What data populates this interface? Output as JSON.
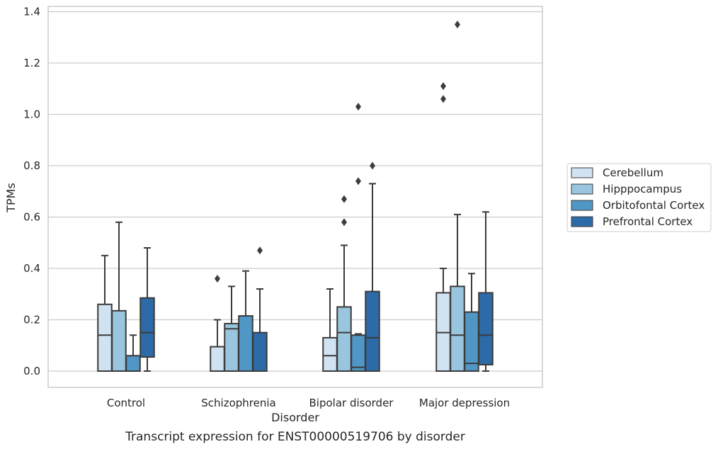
{
  "chart_data": {
    "type": "box",
    "caption": "Transcript expression for ENST00000519706 by disorder",
    "xlabel": "Disorder",
    "ylabel": "TPMs",
    "ylim": [
      -0.065,
      1.42
    ],
    "yticks": [
      "0.0",
      "0.2",
      "0.4",
      "0.6",
      "0.8",
      "1.0",
      "1.2",
      "1.4"
    ],
    "grid": "horizontal",
    "legend_position": "right",
    "categories": [
      "Control",
      "Schizophrenia",
      "Bipolar disorder",
      "Major depression"
    ],
    "series": [
      {
        "name": "Cerebellum",
        "color": "#d1e2f2",
        "boxes": [
          {
            "whislo": 0.0,
            "q1": 0.0,
            "med": 0.14,
            "q3": 0.26,
            "whishi": 0.45,
            "fliers": []
          },
          {
            "whislo": 0.0,
            "q1": 0.0,
            "med": 0.0,
            "q3": 0.095,
            "whishi": 0.2,
            "fliers": [
              0.36
            ]
          },
          {
            "whislo": 0.0,
            "q1": 0.0,
            "med": 0.06,
            "q3": 0.13,
            "whishi": 0.32,
            "fliers": []
          },
          {
            "whislo": 0.0,
            "q1": 0.0,
            "med": 0.15,
            "q3": 0.305,
            "whishi": 0.4,
            "fliers": [
              1.06,
              1.11
            ]
          }
        ]
      },
      {
        "name": "Hipppocampus",
        "color": "#9ac5de",
        "boxes": [
          {
            "whislo": 0.0,
            "q1": 0.0,
            "med": 0.0,
            "q3": 0.235,
            "whishi": 0.58,
            "fliers": []
          },
          {
            "whislo": 0.0,
            "q1": 0.0,
            "med": 0.165,
            "q3": 0.185,
            "whishi": 0.33,
            "fliers": []
          },
          {
            "whislo": 0.0,
            "q1": 0.0,
            "med": 0.15,
            "q3": 0.25,
            "whishi": 0.49,
            "fliers": [
              0.58,
              0.67
            ]
          },
          {
            "whislo": 0.0,
            "q1": 0.0,
            "med": 0.14,
            "q3": 0.33,
            "whishi": 0.61,
            "fliers": [
              1.35
            ]
          }
        ]
      },
      {
        "name": "Orbitofontal Cortex",
        "color": "#5097c6",
        "boxes": [
          {
            "whislo": 0.0,
            "q1": 0.0,
            "med": 0.0,
            "q3": 0.06,
            "whishi": 0.14,
            "fliers": []
          },
          {
            "whislo": 0.0,
            "q1": 0.0,
            "med": 0.0,
            "q3": 0.215,
            "whishi": 0.39,
            "fliers": []
          },
          {
            "whislo": 0.0,
            "q1": 0.0,
            "med": 0.015,
            "q3": 0.14,
            "whishi": 0.145,
            "fliers": [
              0.74,
              1.03
            ]
          },
          {
            "whislo": 0.0,
            "q1": 0.0,
            "med": 0.03,
            "q3": 0.23,
            "whishi": 0.38,
            "fliers": []
          }
        ]
      },
      {
        "name": "Prefrontal Cortex",
        "color": "#2d6aa8",
        "boxes": [
          {
            "whislo": 0.0,
            "q1": 0.055,
            "med": 0.15,
            "q3": 0.285,
            "whishi": 0.48,
            "fliers": []
          },
          {
            "whislo": 0.0,
            "q1": 0.0,
            "med": 0.0,
            "q3": 0.15,
            "whishi": 0.32,
            "fliers": [
              0.47
            ]
          },
          {
            "whislo": 0.0,
            "q1": 0.0,
            "med": 0.13,
            "q3": 0.31,
            "whishi": 0.73,
            "fliers": [
              0.8
            ]
          },
          {
            "whislo": 0.0,
            "q1": 0.025,
            "med": 0.14,
            "q3": 0.305,
            "whishi": 0.62,
            "fliers": []
          }
        ]
      }
    ]
  },
  "colors": {
    "grid": "#cccccc",
    "frame": "#cccccc",
    "box_edge": "#3b3b3b",
    "text": "#262626"
  }
}
